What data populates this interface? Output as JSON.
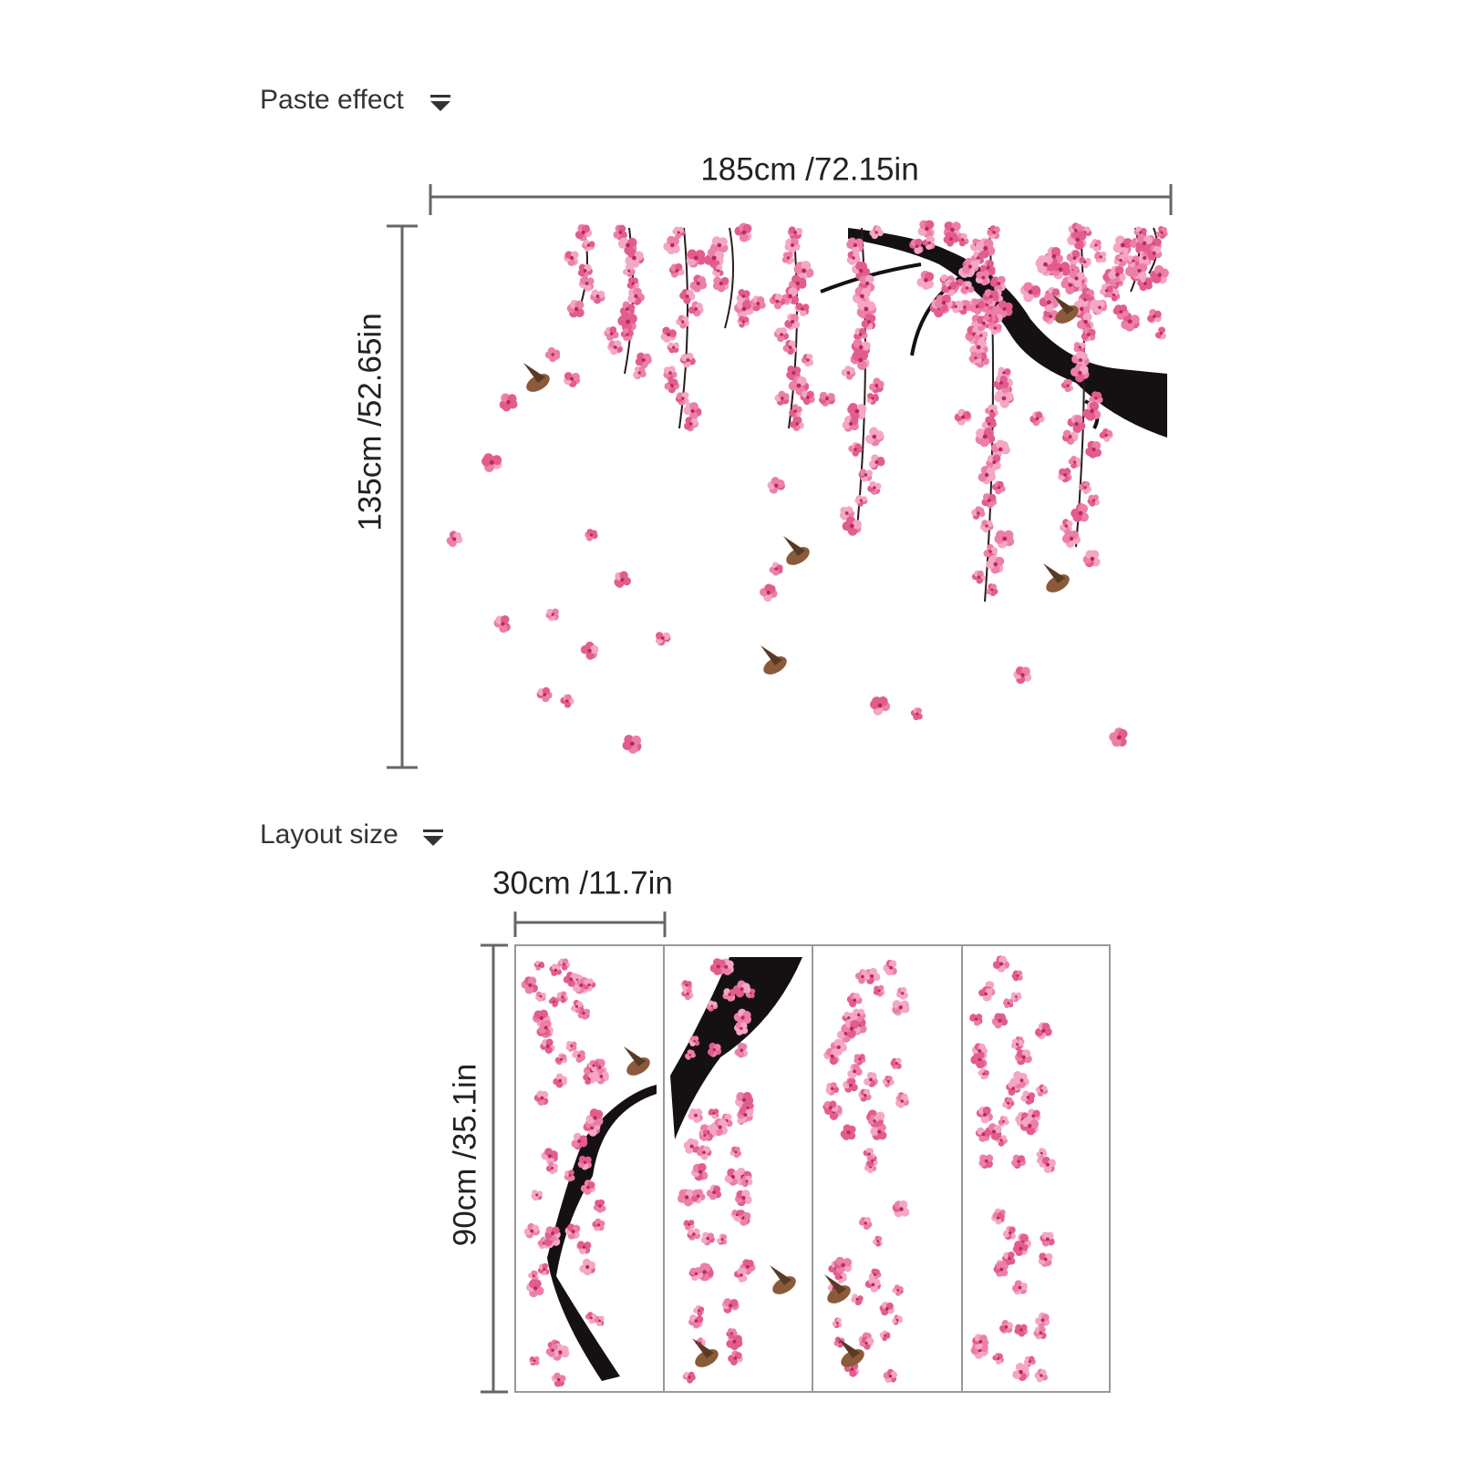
{
  "paste_effect": {
    "heading": "Paste effect",
    "width_label": "185cm /72.15in",
    "height_label": "135cm /52.65in"
  },
  "layout_size": {
    "heading": "Layout size",
    "width_label": "30cm /11.7in",
    "height_label": "90cm /35.1in"
  }
}
